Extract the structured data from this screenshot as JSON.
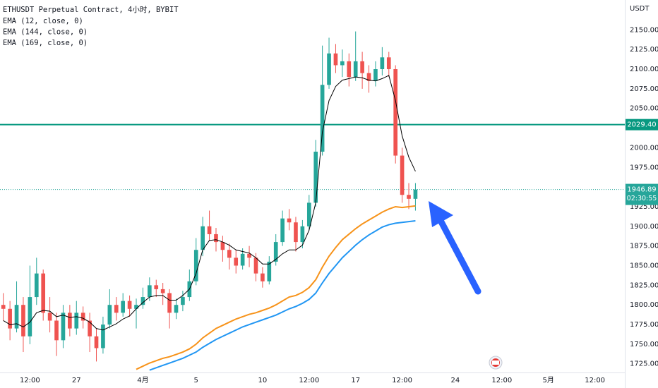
{
  "chart_data": {
    "type": "candlestick",
    "title": "ETHUSDT Perpetual Contract, 4小时, BYBIT",
    "y_unit": "USDT",
    "categories": [
      null,
      null,
      null,
      null,
      "12:00",
      null,
      null,
      null,
      null,
      null,
      null,
      "27",
      null,
      null,
      null,
      null,
      null,
      null,
      null,
      null,
      null,
      "4月",
      null,
      null,
      null,
      null,
      null,
      null,
      null,
      "5",
      null,
      null,
      null,
      null,
      null,
      null,
      null,
      null,
      null,
      "10",
      null,
      null,
      null,
      null,
      null,
      null,
      "12:00",
      null,
      null,
      null,
      null,
      null,
      null,
      "17",
      null,
      null,
      null,
      null,
      null,
      null,
      "12:00",
      null,
      null,
      null,
      null,
      null,
      null,
      null,
      "24",
      null,
      null,
      null,
      null,
      null,
      null,
      "12:00",
      null,
      null,
      null,
      null,
      null,
      null,
      "5月",
      null,
      null,
      null,
      null,
      null,
      null,
      "12:00",
      null,
      null,
      null,
      null
    ],
    "ohlc": [
      [
        1800,
        1815,
        1780,
        1795
      ],
      [
        1795,
        1805,
        1755,
        1770
      ],
      [
        1770,
        1830,
        1765,
        1800
      ],
      [
        1800,
        1810,
        1740,
        1760
      ],
      [
        1760,
        1850,
        1750,
        1810
      ],
      [
        1810,
        1860,
        1800,
        1840
      ],
      [
        1840,
        1845,
        1780,
        1790
      ],
      [
        1790,
        1810,
        1765,
        1780
      ],
      [
        1780,
        1790,
        1735,
        1755
      ],
      [
        1755,
        1800,
        1745,
        1790
      ],
      [
        1790,
        1800,
        1760,
        1770
      ],
      [
        1770,
        1805,
        1762,
        1790
      ],
      [
        1790,
        1798,
        1770,
        1780
      ],
      [
        1780,
        1790,
        1740,
        1760
      ],
      [
        1760,
        1770,
        1728,
        1745
      ],
      [
        1745,
        1785,
        1738,
        1775
      ],
      [
        1775,
        1820,
        1770,
        1800
      ],
      [
        1800,
        1810,
        1780,
        1790
      ],
      [
        1790,
        1815,
        1785,
        1805
      ],
      [
        1805,
        1812,
        1785,
        1795
      ],
      [
        1795,
        1808,
        1770,
        1800
      ],
      [
        1800,
        1822,
        1795,
        1810
      ],
      [
        1810,
        1835,
        1805,
        1825
      ],
      [
        1825,
        1832,
        1810,
        1820
      ],
      [
        1820,
        1828,
        1800,
        1815
      ],
      [
        1815,
        1820,
        1770,
        1790
      ],
      [
        1790,
        1808,
        1782,
        1800
      ],
      [
        1800,
        1818,
        1792,
        1810
      ],
      [
        1810,
        1845,
        1805,
        1830
      ],
      [
        1830,
        1885,
        1825,
        1870
      ],
      [
        1870,
        1912,
        1862,
        1900
      ],
      [
        1900,
        1920,
        1882,
        1890
      ],
      [
        1890,
        1898,
        1868,
        1880
      ],
      [
        1880,
        1888,
        1855,
        1870
      ],
      [
        1870,
        1878,
        1845,
        1860
      ],
      [
        1860,
        1870,
        1840,
        1850
      ],
      [
        1850,
        1872,
        1845,
        1865
      ],
      [
        1865,
        1875,
        1848,
        1860
      ],
      [
        1860,
        1866,
        1830,
        1840
      ],
      [
        1840,
        1848,
        1822,
        1830
      ],
      [
        1830,
        1862,
        1826,
        1855
      ],
      [
        1855,
        1890,
        1850,
        1880
      ],
      [
        1880,
        1920,
        1875,
        1910
      ],
      [
        1910,
        1922,
        1895,
        1905
      ],
      [
        1905,
        1912,
        1868,
        1880
      ],
      [
        1880,
        1908,
        1872,
        1900
      ],
      [
        1900,
        1940,
        1895,
        1930
      ],
      [
        1930,
        2010,
        1925,
        1995
      ],
      [
        1995,
        2130,
        1990,
        2080
      ],
      [
        2080,
        2140,
        2075,
        2120
      ],
      [
        2120,
        2132,
        2095,
        2105
      ],
      [
        2105,
        2125,
        2090,
        2110
      ],
      [
        2110,
        2120,
        2078,
        2090
      ],
      [
        2090,
        2148,
        2085,
        2110
      ],
      [
        2110,
        2122,
        2075,
        2095
      ],
      [
        2095,
        2105,
        2070,
        2085
      ],
      [
        2085,
        2110,
        2078,
        2100
      ],
      [
        2100,
        2128,
        2092,
        2115
      ],
      [
        2115,
        2122,
        2090,
        2100
      ],
      [
        2100,
        2105,
        1980,
        1990
      ],
      [
        1990,
        2000,
        1930,
        1940
      ],
      [
        1940,
        1955,
        1922,
        1935
      ],
      [
        1935,
        1955,
        1920,
        1946.89
      ],
      null,
      null,
      null,
      null,
      null,
      null,
      null,
      null,
      null,
      null,
      null,
      null,
      null,
      null,
      null,
      null,
      null,
      null,
      null,
      null,
      null,
      null,
      null,
      null,
      null,
      null,
      null,
      null,
      null,
      null,
      null
    ],
    "up_color": "#26a69a",
    "down_color": "#ef5350",
    "series": [
      {
        "name": "EMA (12, close, 0)",
        "color": "#000000",
        "values": [
          1780,
          1775,
          1776,
          1772,
          1778,
          1790,
          1793,
          1792,
          1785,
          1787,
          1784,
          1785,
          1783,
          1778,
          1770,
          1768,
          1772,
          1776,
          1782,
          1786,
          1795,
          1803,
          1810,
          1812,
          1812,
          1806,
          1806,
          1812,
          1820,
          1840,
          1870,
          1882,
          1883,
          1880,
          1876,
          1870,
          1868,
          1866,
          1860,
          1852,
          1852,
          1858,
          1865,
          1870,
          1870,
          1876,
          1895,
          1930,
          2020,
          2060,
          2078,
          2086,
          2088,
          2090,
          2089,
          2086,
          2085,
          2088,
          2092,
          2060,
          2015,
          1988,
          1970,
          null,
          null,
          null,
          null,
          null,
          null,
          null,
          null,
          null,
          null,
          null,
          null,
          null,
          null,
          null,
          null,
          null,
          null,
          null,
          null,
          null,
          null,
          null,
          null,
          null,
          null,
          null,
          null,
          null,
          null,
          null
        ]
      },
      {
        "name": "EMA (144, close, 0)",
        "color": "#f7931a",
        "values": [
          null,
          null,
          null,
          null,
          null,
          null,
          null,
          null,
          null,
          null,
          null,
          null,
          null,
          null,
          null,
          null,
          null,
          null,
          null,
          null,
          1718,
          1722,
          1726,
          1729,
          1732,
          1734,
          1737,
          1740,
          1744,
          1750,
          1758,
          1764,
          1770,
          1774,
          1778,
          1782,
          1785,
          1788,
          1790,
          1793,
          1796,
          1800,
          1805,
          1810,
          1812,
          1816,
          1822,
          1832,
          1848,
          1862,
          1873,
          1883,
          1890,
          1897,
          1903,
          1908,
          1913,
          1918,
          1922,
          1925,
          1924,
          1925,
          1926,
          null,
          null,
          null,
          null,
          null,
          null,
          null,
          null,
          null,
          null,
          null,
          null,
          null,
          null,
          null,
          null,
          null,
          null,
          null,
          null,
          null,
          null,
          null,
          null,
          null,
          null,
          null,
          null,
          null,
          null,
          null
        ]
      },
      {
        "name": "EMA (169, close, 0)",
        "color": "#2196f3",
        "values": [
          null,
          null,
          null,
          null,
          null,
          null,
          null,
          null,
          null,
          null,
          null,
          null,
          null,
          null,
          null,
          null,
          null,
          null,
          null,
          null,
          null,
          null,
          1717,
          1720,
          1723,
          1726,
          1729,
          1732,
          1736,
          1740,
          1746,
          1751,
          1756,
          1760,
          1764,
          1768,
          1772,
          1775,
          1778,
          1781,
          1784,
          1787,
          1791,
          1795,
          1798,
          1802,
          1807,
          1815,
          1828,
          1840,
          1850,
          1860,
          1868,
          1876,
          1883,
          1889,
          1894,
          1899,
          1902,
          1904,
          1905,
          1906,
          1907,
          null,
          null,
          null,
          null,
          null,
          null,
          null,
          null,
          null,
          null,
          null,
          null,
          null,
          null,
          null,
          null,
          null,
          null,
          null,
          null,
          null,
          null,
          null,
          null,
          null,
          null,
          null,
          null,
          null,
          null,
          null
        ]
      }
    ],
    "ylim": [
      1714,
      2188
    ],
    "yticks": [
      {
        "value": 1725,
        "label": "1725.00"
      },
      {
        "value": 1750,
        "label": "1750.00"
      },
      {
        "value": 1775,
        "label": "1775.00"
      },
      {
        "value": 1800,
        "label": "1800.00"
      },
      {
        "value": 1825,
        "label": "1825.00"
      },
      {
        "value": 1850,
        "label": "1850.00"
      },
      {
        "value": 1875,
        "label": "1875.00"
      },
      {
        "value": 1900,
        "label": "1900.00"
      },
      {
        "value": 1925,
        "label": "1925.00"
      },
      {
        "value": 1950,
        "label": "1950.00"
      },
      {
        "value": 1975,
        "label": "1975.00"
      },
      {
        "value": 2000,
        "label": "2000.00"
      },
      {
        "value": 2025,
        "label": "2025.00"
      },
      {
        "value": 2050,
        "label": "2050.00"
      },
      {
        "value": 2075,
        "label": "2075.00"
      },
      {
        "value": 2100,
        "label": "2100.00"
      },
      {
        "value": 2125,
        "label": "2125.00"
      },
      {
        "value": 2150,
        "label": "2150.00"
      }
    ],
    "grid": false,
    "hline": {
      "value": 2029.4,
      "label": "2029.40",
      "color": "#089981"
    },
    "last_price": {
      "value": 1946.89,
      "label": "1946.89",
      "countdown": "02:30:55",
      "color": "#26a69a"
    }
  }
}
